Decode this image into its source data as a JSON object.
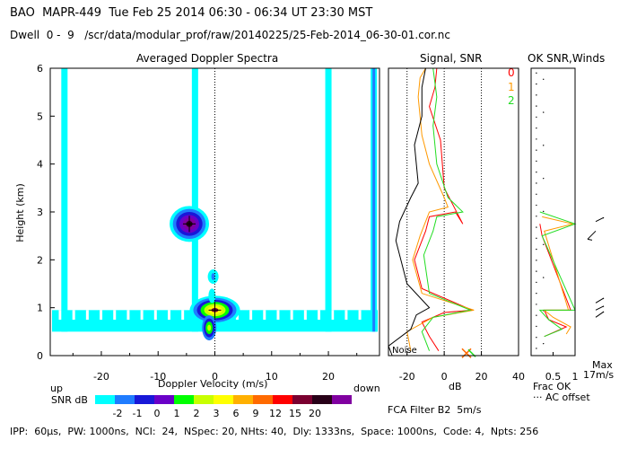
{
  "header": {
    "line1": "BAO  MAPR-449  Tue Feb 25 2014 06:30 - 06:34 UT 23:30 MST",
    "line2": "Dwell  0 -  9   /scr/data/modular_prof/raw/20140225/25-Feb-2014_06-30-01.cor.nc"
  },
  "panels": {
    "doppler_title": "Averaged Doppler Spectra",
    "snr_title": "Signal, SNR",
    "ok_title": "OK SNR,Winds"
  },
  "labels": {
    "up": "up",
    "down": "down",
    "snr_db": "SNR dB",
    "noise": "Noise",
    "frac_ok": "Frac OK",
    "ac_offset": "AC offset",
    "max": "Max",
    "max_value": "17m/s",
    "fca_filter": "FCA Filter B2  5m/s"
  },
  "legend": {
    "dwell_labels": [
      "0",
      "1",
      "2"
    ],
    "dwell_colors": [
      "#ff0000",
      "#ff9900",
      "#22dd22"
    ]
  },
  "colorbar": {
    "labels": [
      "-2",
      "-1",
      "0",
      "1",
      "2",
      "3",
      "6",
      "9",
      "12",
      "15",
      "20"
    ],
    "colors": [
      "#00ffff",
      "#1f7cff",
      "#1818d8",
      "#6a00c8",
      "#00ff00",
      "#c8ff00",
      "#ffff00",
      "#ffb000",
      "#ff6a00",
      "#ff0000",
      "#7a0030",
      "#280018",
      "#8000a0"
    ]
  },
  "footer": "IPP:  60μs,  PW: 1000ns,  NCI:  24,  NSpec: 20, NHts: 40,  Dly: 1333ns,  Space: 1000ns,  Code: 4,  Npts: 256",
  "chart_data": [
    {
      "type": "heatmap",
      "title": "Averaged Doppler Spectra",
      "xlabel": "Doppler Velocity (m/s)",
      "ylabel": "Height (km)",
      "xlim": [
        -29,
        29
      ],
      "ylim": [
        0,
        6
      ],
      "xticks": [
        -20,
        -10,
        0,
        10,
        20
      ],
      "yticks": [
        0,
        1,
        2,
        3,
        4,
        5,
        6
      ],
      "features": [
        {
          "name": "echo",
          "velocity": -4.5,
          "height": 2.75,
          "peak_snr_db": 20
        },
        {
          "name": "echo",
          "velocity": 0,
          "height": 0.95,
          "peak_snr_db": 9
        },
        {
          "name": "echo",
          "velocity": -1,
          "height": 0.6,
          "peak_snr_db": 3
        },
        {
          "name": "column",
          "velocity": -26.5,
          "height_range": [
            0.5,
            6
          ],
          "snr_db": -2
        },
        {
          "name": "column",
          "velocity": -3.5,
          "height_range": [
            0.5,
            6
          ],
          "snr_db": -2
        },
        {
          "name": "column",
          "velocity": 20,
          "height_range": [
            0.5,
            6
          ],
          "snr_db": -2
        },
        {
          "name": "column",
          "velocity": 28,
          "height_range": [
            0.5,
            6
          ],
          "snr_db": -1
        }
      ]
    },
    {
      "type": "line",
      "title": "Signal, SNR",
      "xlabel": "dB",
      "xlim": [
        -30,
        40
      ],
      "ylim": [
        0,
        6
      ],
      "xticks": [
        -20,
        0,
        20,
        40
      ],
      "series": [
        {
          "name": "0",
          "color": "#ff0000",
          "x": [
            -3,
            -8,
            -12,
            0,
            15,
            -12,
            -16,
            -10,
            -8,
            6,
            10,
            0,
            -2,
            -8,
            -5,
            -4
          ],
          "y": [
            0.1,
            0.4,
            0.7,
            0.9,
            0.95,
            1.4,
            2.0,
            2.6,
            2.9,
            3.0,
            2.75,
            3.5,
            4.5,
            5.2,
            5.6,
            6.0
          ]
        },
        {
          "name": "1",
          "color": "#ff9900",
          "x": [
            -18,
            -20,
            -6,
            16,
            -12,
            -17,
            -13,
            -10,
            -8,
            2,
            0,
            -8,
            -12,
            -14,
            -13,
            -10
          ],
          "y": [
            0.1,
            0.5,
            0.8,
            0.95,
            1.3,
            2.0,
            2.5,
            2.8,
            3.0,
            3.1,
            3.3,
            4.0,
            4.6,
            5.4,
            5.8,
            6.0
          ]
        },
        {
          "name": "2",
          "color": "#22dd22",
          "x": [
            -8,
            -12,
            -6,
            14,
            -8,
            -11,
            -6,
            -4,
            10,
            2,
            -4,
            -6,
            -4,
            -6
          ],
          "y": [
            0.1,
            0.5,
            0.8,
            0.95,
            1.3,
            2.1,
            2.6,
            2.9,
            3.0,
            3.3,
            4.0,
            4.8,
            5.4,
            6.0
          ]
        },
        {
          "name": "noise",
          "color": "#000000",
          "x": [
            -28,
            -30,
            -18,
            -15,
            -8,
            -20,
            -26,
            -24,
            -18,
            -14,
            -16,
            -12,
            -12,
            -10
          ],
          "y": [
            0.0,
            0.2,
            0.55,
            0.85,
            1.0,
            1.5,
            2.4,
            2.8,
            3.3,
            3.6,
            4.4,
            5.0,
            5.6,
            6.0
          ]
        }
      ],
      "markers": [
        {
          "name": "noise-cross",
          "x": 12,
          "y": 0.05,
          "color": "#ff6a00"
        }
      ]
    },
    {
      "type": "line",
      "title": "OK SNR,Winds",
      "xlabel": "Frac OK",
      "xlim": [
        0,
        1
      ],
      "ylim": [
        0,
        6
      ],
      "xticks": [
        0.5,
        1
      ],
      "series": [
        {
          "name": "0",
          "color": "#ff0000",
          "x": [
            0.3,
            0.8,
            0.4,
            0.3,
            0.9,
            0.25,
            0.2
          ],
          "y": [
            0.4,
            0.6,
            0.75,
            0.95,
            0.95,
            2.5,
            2.75
          ]
        },
        {
          "name": "1",
          "color": "#ff9900",
          "x": [
            0.8,
            0.9,
            0.5,
            0.3,
            0.85,
            0.3,
            0.95,
            0.25
          ],
          "y": [
            0.45,
            0.6,
            0.8,
            0.95,
            0.95,
            2.6,
            2.75,
            2.9
          ]
        },
        {
          "name": "2",
          "color": "#22dd22",
          "x": [
            0.3,
            0.7,
            0.4,
            0.2,
            1.0,
            0.25,
            1.0,
            0.2
          ],
          "y": [
            0.4,
            0.55,
            0.75,
            0.95,
            0.95,
            2.5,
            2.75,
            3.0
          ]
        }
      ],
      "winds": [
        {
          "height": 2.6,
          "label": "wind-barb"
        },
        {
          "height": 2.8,
          "label": "wind-barb"
        },
        {
          "height": 0.8,
          "label": "wind-barb"
        },
        {
          "height": 0.95,
          "label": "wind-barb"
        },
        {
          "height": 1.1,
          "label": "wind-barb"
        }
      ]
    }
  ]
}
